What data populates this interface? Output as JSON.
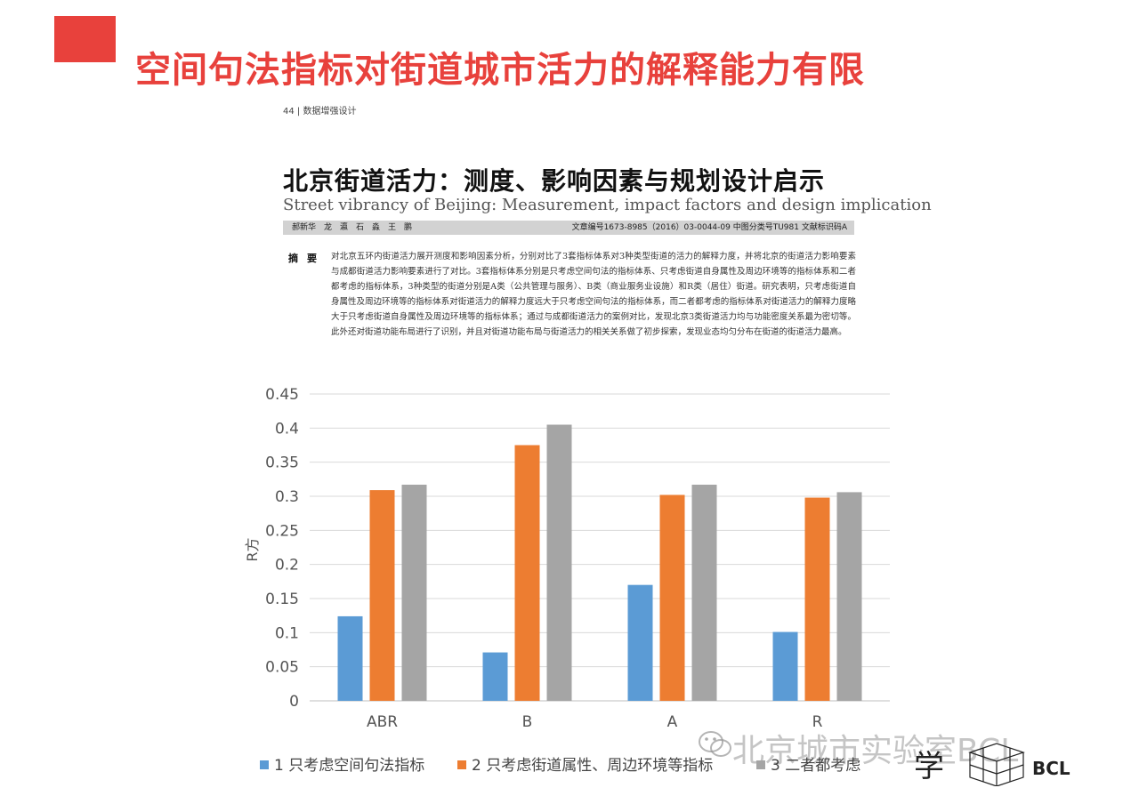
{
  "slide": {
    "title": "空间句法指标对街道城市活力的解释能力有限",
    "accent_color": "#e8413c"
  },
  "paper": {
    "header": "44 | 数据增强设计",
    "title_cn": "北京街道活力：测度、影响因素与规划设计启示",
    "title_en": "Street vibrancy of Beijing: Measurement, impact factors and design implication",
    "authors": "郝新华　龙　瀛　石　淼　王　鹏",
    "meta": "文章编号1673-8985（2016）03-0044-09 中图分类号TU981 文献标识码A",
    "abstract_label": "摘要",
    "abstract": "对北京五环内街道活力展开测度和影响因素分析，分别对比了3套指标体系对3种类型街道的活力的解释力度，并将北京的街道活力影响要素与成都街道活力影响要素进行了对比。3套指标体系分别是只考虑空间句法的指标体系、只考虑街道自身属性及周边环境等的指标体系和二者都考虑的指标体系，3种类型的街道分别是A类（公共管理与服务）、B类（商业服务业设施）和R类（居住）街道。研究表明，只考虑街道自身属性及周边环境等的指标体系对街道活力的解释力度远大于只考虑空间句法的指标体系，而二者都考虑的指标体系对街道活力的解释力度略大于只考虑街道自身属性及周边环境等的指标体系；通过与成都街道活力的案例对比，发现北京3类街道活力均与功能密度关系最为密切等。此外还对街道功能布局进行了识别，并且对街道功能布局与街道活力的相关关系做了初步探索，发现业态均匀分布在街道的街道活力最高。"
  },
  "chart_data": {
    "type": "bar",
    "categories": [
      "ABR",
      "B",
      "A",
      "R"
    ],
    "series": [
      {
        "name": "1 只考虑空间句法指标",
        "color": "#5b9bd5",
        "values": [
          0.124,
          0.071,
          0.17,
          0.101
        ]
      },
      {
        "name": "2 只考虑街道属性、周边环境等指标",
        "color": "#ed7d31",
        "values": [
          0.309,
          0.375,
          0.302,
          0.298
        ]
      },
      {
        "name": "3 二者都考虑",
        "color": "#a5a5a5",
        "values": [
          0.317,
          0.405,
          0.317,
          0.306
        ]
      }
    ],
    "ylabel": "R方",
    "ylim": [
      0,
      0.45
    ],
    "yticks": [
      "0",
      "0.05",
      "0.1",
      "0.15",
      "0.2",
      "0.25",
      "0.3",
      "0.35",
      "0.4",
      "0.45"
    ],
    "grid": true,
    "legend_position": "bottom"
  },
  "watermark": "北京城市实验室BCL",
  "logo": {
    "calligraphy": "学",
    "bcl": "BCL"
  }
}
